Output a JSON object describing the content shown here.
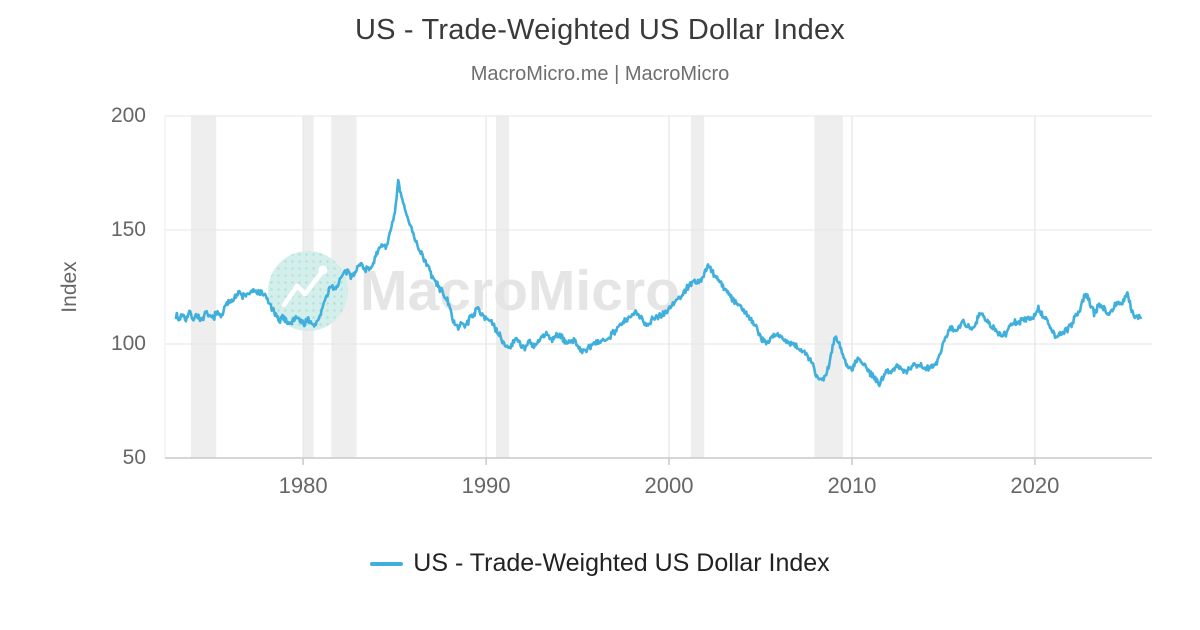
{
  "header": {
    "title": "US - Trade-Weighted US Dollar Index",
    "subtitle": "MacroMicro.me | MacroMicro"
  },
  "watermark": {
    "text": "MacroMicro",
    "logo": "macromicro-zigzag-logo"
  },
  "legend": {
    "label": "US - Trade-Weighted US Dollar Index"
  },
  "colors": {
    "line": "#3FAFDC",
    "band": "#EEEEEE",
    "grid": "#E6E6E6",
    "grid_vertical": "#EAEAEA",
    "plot_left_border": "#EDEDED",
    "axis_line": "#C9C9C9",
    "watermark_text": "#E5E5E5"
  },
  "chart_data": {
    "type": "line",
    "title": "US - Trade-Weighted US Dollar Index",
    "xlabel": "",
    "ylabel": "Index",
    "xlim": [
      1972.45,
      2026.4
    ],
    "ylim": [
      50,
      200
    ],
    "x_ticks": [
      1980,
      1990,
      2000,
      2010,
      2020
    ],
    "y_ticks": [
      200,
      150,
      100,
      50
    ],
    "grid": true,
    "legend_position": "bottom",
    "recession_bands": [
      [
        1973.87,
        1975.25
      ],
      [
        1980.02,
        1980.58
      ],
      [
        1981.54,
        1982.92
      ],
      [
        1990.54,
        1991.25
      ],
      [
        2001.2,
        2001.92
      ],
      [
        2007.95,
        2009.5
      ]
    ],
    "series": [
      {
        "name": "US - Trade-Weighted US Dollar Index",
        "points": [
          [
            1973.05,
            113
          ],
          [
            1973.2,
            110.5
          ],
          [
            1973.4,
            113.5
          ],
          [
            1973.6,
            111
          ],
          [
            1973.8,
            114
          ],
          [
            1974,
            111
          ],
          [
            1974.2,
            113
          ],
          [
            1974.45,
            110
          ],
          [
            1974.7,
            113.5
          ],
          [
            1974.9,
            111.5
          ],
          [
            1975.1,
            112
          ],
          [
            1975.3,
            113.5
          ],
          [
            1975.5,
            112
          ],
          [
            1975.8,
            117
          ],
          [
            1976,
            119
          ],
          [
            1976.3,
            121
          ],
          [
            1976.5,
            122.5
          ],
          [
            1976.7,
            121
          ],
          [
            1977,
            122
          ],
          [
            1977.3,
            123
          ],
          [
            1977.6,
            122.5
          ],
          [
            1977.9,
            121.5
          ],
          [
            1978.1,
            118.5
          ],
          [
            1978.4,
            114
          ],
          [
            1978.65,
            110
          ],
          [
            1978.9,
            112
          ],
          [
            1979.1,
            110
          ],
          [
            1979.35,
            109
          ],
          [
            1979.6,
            112
          ],
          [
            1979.85,
            110.5
          ],
          [
            1980.05,
            108.5
          ],
          [
            1980.25,
            111.5
          ],
          [
            1980.5,
            107.5
          ],
          [
            1980.7,
            109
          ],
          [
            1980.9,
            112
          ],
          [
            1981.1,
            117
          ],
          [
            1981.3,
            121
          ],
          [
            1981.55,
            126
          ],
          [
            1981.75,
            124
          ],
          [
            1981.95,
            127
          ],
          [
            1982.2,
            130.5
          ],
          [
            1982.45,
            132
          ],
          [
            1982.6,
            129.5
          ],
          [
            1982.8,
            131.5
          ],
          [
            1983,
            134
          ],
          [
            1983.2,
            135
          ],
          [
            1983.45,
            132.5
          ],
          [
            1983.7,
            134
          ],
          [
            1983.9,
            137
          ],
          [
            1984.1,
            140
          ],
          [
            1984.3,
            144
          ],
          [
            1984.5,
            142.5
          ],
          [
            1984.7,
            147
          ],
          [
            1984.85,
            151
          ],
          [
            1985,
            157
          ],
          [
            1985.1,
            163
          ],
          [
            1985.2,
            171.5
          ],
          [
            1985.3,
            167
          ],
          [
            1985.45,
            162
          ],
          [
            1985.6,
            158
          ],
          [
            1985.75,
            154
          ],
          [
            1985.9,
            152
          ],
          [
            1986.05,
            148
          ],
          [
            1986.2,
            144
          ],
          [
            1986.4,
            141
          ],
          [
            1986.6,
            137.5
          ],
          [
            1986.8,
            134.5
          ],
          [
            1987,
            130.5
          ],
          [
            1987.2,
            127.5
          ],
          [
            1987.45,
            124.5
          ],
          [
            1987.7,
            122
          ],
          [
            1987.9,
            118.5
          ],
          [
            1988.1,
            113
          ],
          [
            1988.3,
            109
          ],
          [
            1988.5,
            106.5
          ],
          [
            1988.7,
            109.5
          ],
          [
            1988.9,
            108
          ],
          [
            1989.1,
            111.5
          ],
          [
            1989.3,
            113
          ],
          [
            1989.55,
            115.5
          ],
          [
            1989.75,
            113.5
          ],
          [
            1990,
            111.5
          ],
          [
            1990.2,
            110.5
          ],
          [
            1990.5,
            106.5
          ],
          [
            1990.75,
            103.5
          ],
          [
            1991,
            100
          ],
          [
            1991.2,
            98.5
          ],
          [
            1991.45,
            100
          ],
          [
            1991.6,
            103
          ],
          [
            1991.85,
            100.5
          ],
          [
            1992.1,
            98
          ],
          [
            1992.35,
            101
          ],
          [
            1992.6,
            98.5
          ],
          [
            1992.85,
            101
          ],
          [
            1993.1,
            103
          ],
          [
            1993.35,
            104.5
          ],
          [
            1993.6,
            102
          ],
          [
            1993.85,
            104
          ],
          [
            1994.1,
            103
          ],
          [
            1994.35,
            101
          ],
          [
            1994.6,
            100.5
          ],
          [
            1994.85,
            102
          ],
          [
            1995.05,
            98.5
          ],
          [
            1995.3,
            96.5
          ],
          [
            1995.55,
            97.5
          ],
          [
            1995.8,
            99.5
          ],
          [
            1996.05,
            100.5
          ],
          [
            1996.35,
            101.5
          ],
          [
            1996.7,
            103
          ],
          [
            1997,
            105.5
          ],
          [
            1997.3,
            108
          ],
          [
            1997.6,
            110
          ],
          [
            1997.9,
            112
          ],
          [
            1998.2,
            113.5
          ],
          [
            1998.5,
            111.5
          ],
          [
            1998.8,
            108.5
          ],
          [
            1999.05,
            110.5
          ],
          [
            1999.3,
            112
          ],
          [
            1999.6,
            113
          ],
          [
            1999.9,
            114.5
          ],
          [
            2000.15,
            117
          ],
          [
            2000.4,
            119
          ],
          [
            2000.7,
            121.5
          ],
          [
            2000.95,
            124
          ],
          [
            2001.15,
            126.5
          ],
          [
            2001.35,
            128
          ],
          [
            2001.55,
            126.5
          ],
          [
            2001.8,
            128.5
          ],
          [
            2002,
            132
          ],
          [
            2002.15,
            134
          ],
          [
            2002.35,
            132
          ],
          [
            2002.6,
            129.5
          ],
          [
            2002.85,
            126.5
          ],
          [
            2003.1,
            124
          ],
          [
            2003.35,
            121
          ],
          [
            2003.6,
            118.5
          ],
          [
            2003.85,
            117
          ],
          [
            2004.1,
            114.5
          ],
          [
            2004.35,
            112.5
          ],
          [
            2004.6,
            109.5
          ],
          [
            2004.85,
            106
          ],
          [
            2005.1,
            102
          ],
          [
            2005.3,
            100.5
          ],
          [
            2005.55,
            102.5
          ],
          [
            2005.8,
            104.5
          ],
          [
            2006.05,
            103.5
          ],
          [
            2006.3,
            101.5
          ],
          [
            2006.55,
            100.5
          ],
          [
            2006.8,
            99.5
          ],
          [
            2007.05,
            98.5
          ],
          [
            2007.3,
            97
          ],
          [
            2007.55,
            95
          ],
          [
            2007.8,
            92
          ],
          [
            2008,
            87
          ],
          [
            2008.2,
            84
          ],
          [
            2008.4,
            84.5
          ],
          [
            2008.6,
            87
          ],
          [
            2008.8,
            93
          ],
          [
            2009,
            101
          ],
          [
            2009.15,
            103
          ],
          [
            2009.35,
            99.5
          ],
          [
            2009.55,
            94
          ],
          [
            2009.75,
            91
          ],
          [
            2009.95,
            89
          ],
          [
            2010.15,
            91
          ],
          [
            2010.35,
            94.5
          ],
          [
            2010.55,
            92.5
          ],
          [
            2010.8,
            89.5
          ],
          [
            2011.05,
            86.5
          ],
          [
            2011.3,
            84
          ],
          [
            2011.5,
            82.5
          ],
          [
            2011.75,
            85.5
          ],
          [
            2011.95,
            89
          ],
          [
            2012.2,
            88
          ],
          [
            2012.45,
            90
          ],
          [
            2012.7,
            89
          ],
          [
            2012.95,
            88.5
          ],
          [
            2013.2,
            89.5
          ],
          [
            2013.45,
            91.5
          ],
          [
            2013.7,
            90.5
          ],
          [
            2013.95,
            89.5
          ],
          [
            2014.2,
            89.5
          ],
          [
            2014.45,
            90.5
          ],
          [
            2014.65,
            92.5
          ],
          [
            2014.9,
            98
          ],
          [
            2015.15,
            104
          ],
          [
            2015.4,
            107.5
          ],
          [
            2015.65,
            106
          ],
          [
            2015.9,
            108.5
          ],
          [
            2016.1,
            109.5
          ],
          [
            2016.3,
            107.5
          ],
          [
            2016.55,
            106.5
          ],
          [
            2016.8,
            110
          ],
          [
            2017,
            114
          ],
          [
            2017.2,
            112
          ],
          [
            2017.45,
            109
          ],
          [
            2017.7,
            107
          ],
          [
            2017.95,
            105.5
          ],
          [
            2018.2,
            103.5
          ],
          [
            2018.45,
            105
          ],
          [
            2018.7,
            108
          ],
          [
            2018.95,
            109.5
          ],
          [
            2019.2,
            110
          ],
          [
            2019.45,
            110.5
          ],
          [
            2019.7,
            111.5
          ],
          [
            2019.95,
            112
          ],
          [
            2020.15,
            116
          ],
          [
            2020.4,
            113
          ],
          [
            2020.65,
            110
          ],
          [
            2020.9,
            106.5
          ],
          [
            2021.1,
            103.5
          ],
          [
            2021.35,
            104
          ],
          [
            2021.6,
            105
          ],
          [
            2021.85,
            107
          ],
          [
            2022.05,
            109
          ],
          [
            2022.3,
            113
          ],
          [
            2022.55,
            117
          ],
          [
            2022.75,
            123
          ],
          [
            2022.9,
            120.5
          ],
          [
            2023.05,
            116.5
          ],
          [
            2023.25,
            113.5
          ],
          [
            2023.5,
            117.5
          ],
          [
            2023.7,
            116
          ],
          [
            2023.95,
            114
          ],
          [
            2024.15,
            114
          ],
          [
            2024.4,
            117.5
          ],
          [
            2024.6,
            118
          ],
          [
            2024.8,
            118.5
          ],
          [
            2024.95,
            121.5
          ],
          [
            2025.1,
            121
          ],
          [
            2025.25,
            115.5
          ],
          [
            2025.45,
            111.5
          ],
          [
            2025.6,
            112.5
          ],
          [
            2025.78,
            111.5
          ]
        ]
      }
    ]
  }
}
